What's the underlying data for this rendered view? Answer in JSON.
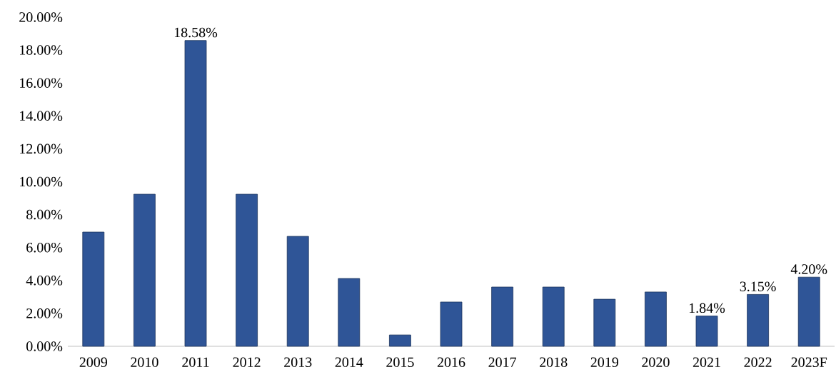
{
  "chart_data": {
    "type": "bar",
    "categories": [
      "2009",
      "2010",
      "2011",
      "2012",
      "2013",
      "2014",
      "2015",
      "2016",
      "2017",
      "2018",
      "2019",
      "2020",
      "2021",
      "2022",
      "2023F"
    ],
    "values": [
      6.94,
      9.24,
      18.58,
      9.24,
      6.68,
      4.12,
      0.69,
      2.69,
      3.6,
      3.6,
      2.86,
      3.3,
      1.84,
      3.15,
      4.2
    ],
    "value_labels": [
      null,
      null,
      "18.58%",
      null,
      null,
      null,
      null,
      null,
      null,
      null,
      null,
      null,
      "1.84%",
      "3.15%",
      "4.20%"
    ],
    "color": "#2f5597",
    "ylim": [
      0,
      20
    ],
    "yticks": [
      {
        "value": 0,
        "label": "0.00%"
      },
      {
        "value": 2,
        "label": "2.00%"
      },
      {
        "value": 4,
        "label": "4.00%"
      },
      {
        "value": 6,
        "label": "6.00%"
      },
      {
        "value": 8,
        "label": "8.00%"
      },
      {
        "value": 10,
        "label": "10.00%"
      },
      {
        "value": 12,
        "label": "12.00%"
      },
      {
        "value": 14,
        "label": "14.00%"
      },
      {
        "value": 16,
        "label": "16.00%"
      },
      {
        "value": 18,
        "label": "18.00%"
      },
      {
        "value": 20,
        "label": "20.00%"
      }
    ],
    "grid": false
  }
}
